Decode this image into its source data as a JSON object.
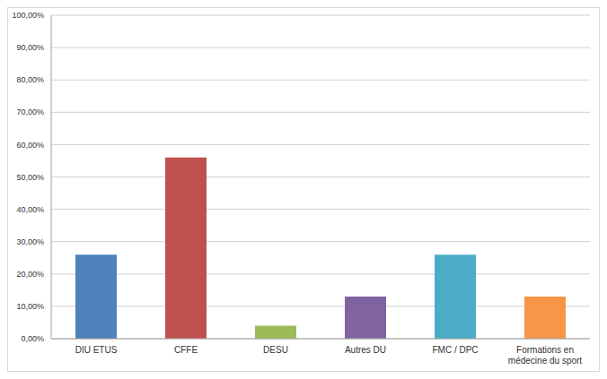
{
  "chart_data": {
    "type": "bar",
    "categories": [
      "DIU ETUS",
      "CFFE",
      "DESU",
      "Autres DU",
      "FMC / DPC",
      "Formations en médecine du sport"
    ],
    "values": [
      26,
      56,
      4,
      13,
      26,
      13
    ],
    "colors": [
      "#4f81bd",
      "#c0504d",
      "#9bbb59",
      "#8064a2",
      "#4bacc6",
      "#f79646"
    ],
    "ylim": [
      0,
      100
    ],
    "yticks": [
      {
        "value": 0,
        "label": "0,00%"
      },
      {
        "value": 10,
        "label": "10,00%"
      },
      {
        "value": 20,
        "label": "20,00%"
      },
      {
        "value": 30,
        "label": "30,00%"
      },
      {
        "value": 40,
        "label": "40,00%"
      },
      {
        "value": 50,
        "label": "50,00%"
      },
      {
        "value": 60,
        "label": "60,00%"
      },
      {
        "value": 70,
        "label": "70,00%"
      },
      {
        "value": 80,
        "label": "80,00%"
      },
      {
        "value": 90,
        "label": "90,00%"
      },
      {
        "value": 100,
        "label": "100,00%"
      }
    ],
    "grid": true
  }
}
